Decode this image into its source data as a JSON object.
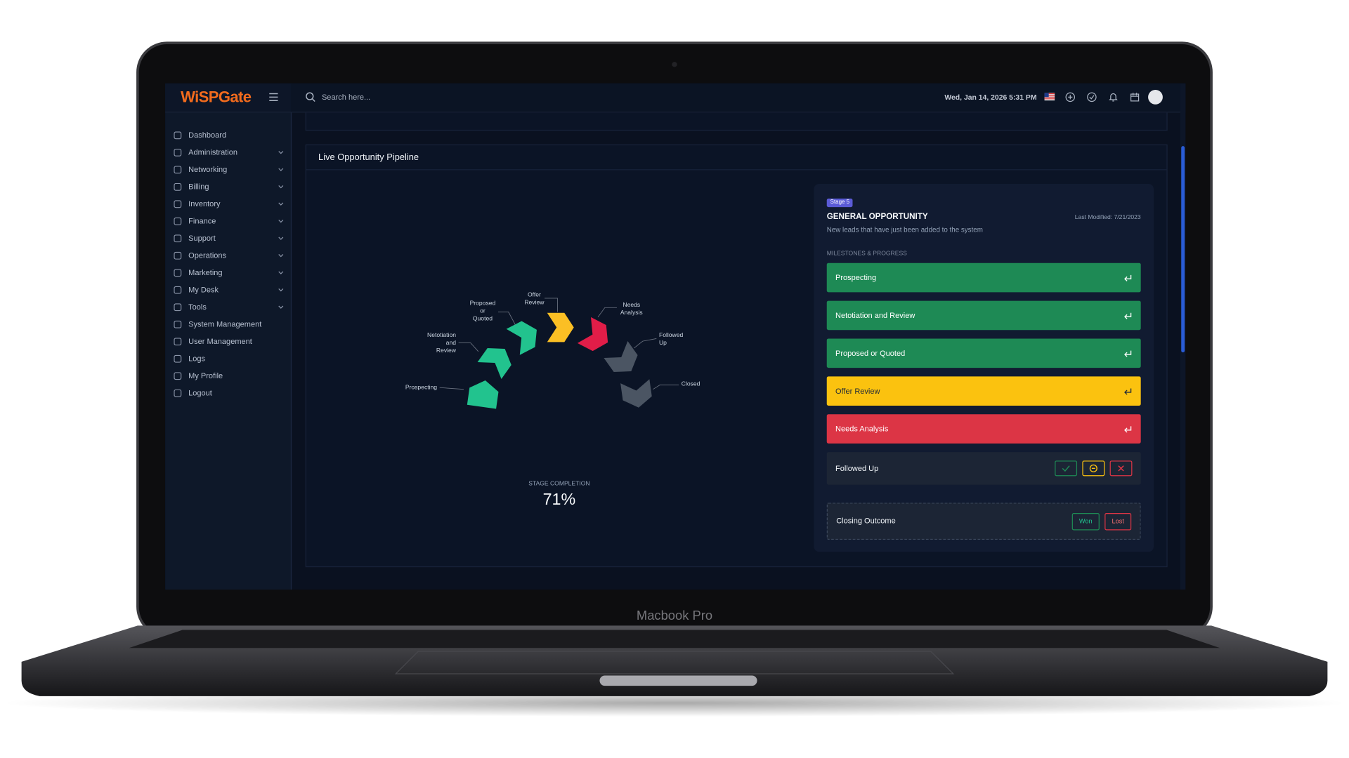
{
  "device_label": "Macbook Pro",
  "header": {
    "logo": "WiSPGate",
    "search_placeholder": "Search here...",
    "datetime": "Wed, Jan 14, 2026 5:31 PM"
  },
  "sidebar": {
    "items": [
      {
        "label": "Dashboard",
        "expandable": false
      },
      {
        "label": "Administration",
        "expandable": true
      },
      {
        "label": "Networking",
        "expandable": true
      },
      {
        "label": "Billing",
        "expandable": true
      },
      {
        "label": "Inventory",
        "expandable": true
      },
      {
        "label": "Finance",
        "expandable": true
      },
      {
        "label": "Support",
        "expandable": true
      },
      {
        "label": "Operations",
        "expandable": true
      },
      {
        "label": "Marketing",
        "expandable": true
      },
      {
        "label": "My Desk",
        "expandable": true
      },
      {
        "label": "Tools",
        "expandable": true
      },
      {
        "label": "System Management",
        "expandable": false
      },
      {
        "label": "User Management",
        "expandable": false
      },
      {
        "label": "Logs",
        "expandable": false
      },
      {
        "label": "My Profile",
        "expandable": false
      },
      {
        "label": "Logout",
        "expandable": false
      }
    ]
  },
  "pipeline": {
    "title": "Live Opportunity Pipeline",
    "stages": [
      {
        "label_lines": [
          "Prospecting"
        ],
        "color": "#22c38e"
      },
      {
        "label_lines": [
          "Netotiation",
          "and",
          "Review"
        ],
        "color": "#22c38e"
      },
      {
        "label_lines": [
          "Proposed",
          "or",
          "Quoted"
        ],
        "color": "#22c38e"
      },
      {
        "label_lines": [
          "Offer",
          "Review"
        ],
        "color": "#fbbf24"
      },
      {
        "label_lines": [
          "Needs",
          "Analysis"
        ],
        "color": "#e11d48"
      },
      {
        "label_lines": [
          "Followed",
          "Up"
        ],
        "color": "#4b5563"
      },
      {
        "label_lines": [
          "Closed"
        ],
        "color": "#4b5563"
      }
    ],
    "completion_label": "STAGE COMPLETION",
    "completion": "71%"
  },
  "detail": {
    "badge": "Stage 5",
    "title": "GENERAL OPPORTUNITY",
    "last_modified": "Last Modified: 7/21/2023",
    "description": "New leads that have just been added to the system",
    "section_label": "MILESTONES & PROGRESS",
    "milestones": [
      {
        "label": "Prospecting",
        "color": "#1e8a55",
        "text_color": "#ffffff"
      },
      {
        "label": "Netotiation and Review",
        "color": "#1e8a55",
        "text_color": "#ffffff"
      },
      {
        "label": "Proposed or Quoted",
        "color": "#1e8a55",
        "text_color": "#ffffff"
      },
      {
        "label": "Offer Review",
        "color": "#fbc20f",
        "text_color": "#1f2937"
      },
      {
        "label": "Needs Analysis",
        "color": "#dc3545",
        "text_color": "#ffffff"
      }
    ],
    "followed_up": "Followed Up",
    "closing": {
      "label": "Closing Outcome",
      "won": "Won",
      "lost": "Lost"
    }
  }
}
